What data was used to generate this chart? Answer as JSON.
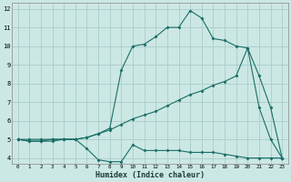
{
  "xlabel": "Humidex (Indice chaleur)",
  "background_color": "#cce8e4",
  "grid_color": "#aaccca",
  "line_color": "#1a6e68",
  "xlim": [
    -0.5,
    23.5
  ],
  "ylim": [
    3.7,
    12.3
  ],
  "yticks": [
    4,
    5,
    6,
    7,
    8,
    9,
    10,
    11,
    12
  ],
  "xticks": [
    0,
    1,
    2,
    3,
    4,
    5,
    6,
    7,
    8,
    9,
    10,
    11,
    12,
    13,
    14,
    15,
    16,
    17,
    18,
    19,
    20,
    21,
    22,
    23
  ],
  "line1_x": [
    0,
    1,
    2,
    3,
    4,
    5,
    6,
    7,
    8,
    9,
    10,
    11,
    12,
    13,
    14,
    15,
    16,
    17,
    18,
    19,
    20,
    21,
    22,
    23
  ],
  "line1_y": [
    5.0,
    4.9,
    4.9,
    4.9,
    5.0,
    5.0,
    4.5,
    3.9,
    3.8,
    3.8,
    4.7,
    4.4,
    4.4,
    4.4,
    4.4,
    4.3,
    4.3,
    4.3,
    4.2,
    4.1,
    4.0,
    4.0,
    4.0,
    4.0
  ],
  "line2_x": [
    0,
    1,
    2,
    3,
    4,
    5,
    6,
    7,
    8,
    9,
    10,
    11,
    12,
    13,
    14,
    15,
    16,
    17,
    18,
    19,
    20,
    21,
    22,
    23
  ],
  "line2_y": [
    5.0,
    4.9,
    4.9,
    5.0,
    5.0,
    5.0,
    5.1,
    5.3,
    5.5,
    5.8,
    6.1,
    6.3,
    6.5,
    6.8,
    7.1,
    7.4,
    7.6,
    7.9,
    8.1,
    8.4,
    9.9,
    6.7,
    5.0,
    4.0
  ],
  "line3_x": [
    0,
    1,
    2,
    3,
    4,
    5,
    6,
    7,
    8,
    9,
    10,
    11,
    12,
    13,
    14,
    15,
    16,
    17,
    18,
    19,
    20,
    21,
    22,
    23
  ],
  "line3_y": [
    5.0,
    5.0,
    5.0,
    5.0,
    5.0,
    5.0,
    5.1,
    5.3,
    5.6,
    8.7,
    10.0,
    10.1,
    10.5,
    11.0,
    11.0,
    11.9,
    11.5,
    10.4,
    10.3,
    10.0,
    9.9,
    8.4,
    6.7,
    4.0
  ]
}
